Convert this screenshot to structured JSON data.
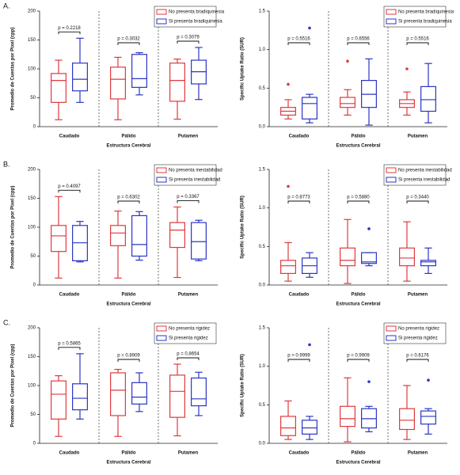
{
  "chart_data": [
    {
      "type": "box",
      "panel_label": "A.",
      "ylabel": "Promedio de Cuentas por Pixel (cpp)",
      "xlabel": "Estructura Cerebral",
      "categories": [
        "Caudado",
        "Pálido",
        "Putamen"
      ],
      "ylim": [
        0,
        200
      ],
      "yticks": [
        0,
        50,
        100,
        150,
        200
      ],
      "series": [
        {
          "name": "No presenta bradiquinesia",
          "color": "#e0393e",
          "min": [
            12,
            12,
            13
          ],
          "q1": [
            42,
            48,
            44
          ],
          "median": [
            80,
            82,
            80
          ],
          "q3": [
            92,
            103,
            110
          ],
          "max": [
            115,
            120,
            117
          ],
          "outliers": [
            [],
            [],
            []
          ]
        },
        {
          "name": "Si presenta bradiquinesia",
          "color": "#2b35c4",
          "min": [
            42,
            55,
            47
          ],
          "q1": [
            62,
            68,
            74
          ],
          "median": [
            82,
            83,
            95
          ],
          "q3": [
            110,
            125,
            115
          ],
          "max": [
            153,
            128,
            137
          ],
          "outliers": [
            [],
            [],
            []
          ]
        }
      ],
      "annotations": [
        "p = 0.2218",
        "p = 0.3032",
        "p = 0.3079"
      ]
    },
    {
      "type": "box",
      "ylabel": "Specific Uptake Ratio (SUR)",
      "xlabel": "Estructura Cerebral",
      "categories": [
        "Caudado",
        "Pálido",
        "Putamen"
      ],
      "ylim": [
        0,
        1.5
      ],
      "yticks": [
        {
          "value": 0,
          "label": "0.0"
        },
        0.5,
        {
          "value": 1,
          "label": "1.0"
        },
        1.5
      ],
      "series": [
        {
          "name": "No presenta bradiquinesia",
          "color": "#e0393e",
          "min": [
            0.1,
            0.15,
            0.15
          ],
          "q1": [
            0.15,
            0.25,
            0.25
          ],
          "median": [
            0.2,
            0.3,
            0.3
          ],
          "q3": [
            0.25,
            0.38,
            0.35
          ],
          "max": [
            0.35,
            0.48,
            0.45
          ],
          "outliers": [
            [
              0.55
            ],
            [
              0.85
            ],
            [
              0.75
            ]
          ]
        },
        {
          "name": "Si presenta bradiquinesia",
          "color": "#2b35c4",
          "min": [
            0.05,
            0.02,
            0.05
          ],
          "q1": [
            0.1,
            0.25,
            0.2
          ],
          "median": [
            0.3,
            0.42,
            0.35
          ],
          "q3": [
            0.38,
            0.6,
            0.52
          ],
          "max": [
            0.42,
            0.88,
            0.82
          ],
          "outliers": [
            [
              1.28
            ],
            [],
            []
          ]
        }
      ],
      "annotations": [
        "p = 0.5516",
        "p = 0.6556",
        "p = 0.5516"
      ]
    },
    {
      "type": "box",
      "panel_label": "B.",
      "ylabel": "Promedio de Cuentas por Pixel (cpp)",
      "xlabel": "Estructura Cerebral",
      "categories": [
        "Caudado",
        "Pálido",
        "Putamen"
      ],
      "ylim": [
        0,
        200
      ],
      "yticks": [
        0,
        50,
        100,
        150,
        200
      ],
      "series": [
        {
          "name": "No presenta inestabilidad",
          "color": "#e0393e",
          "min": [
            12,
            12,
            13
          ],
          "q1": [
            58,
            68,
            65
          ],
          "median": [
            85,
            90,
            95
          ],
          "q3": [
            103,
            103,
            108
          ],
          "max": [
            153,
            128,
            135
          ],
          "outliers": [
            [],
            [],
            []
          ]
        },
        {
          "name": "Si presenta inestabilidad",
          "color": "#2b35c4",
          "min": [
            40,
            43,
            42
          ],
          "q1": [
            42,
            50,
            45
          ],
          "median": [
            73,
            70,
            75
          ],
          "q3": [
            103,
            120,
            108
          ],
          "max": [
            110,
            127,
            112
          ],
          "outliers": [
            [],
            [],
            []
          ]
        }
      ],
      "annotations": [
        "p = 0.4097",
        "p = 0.6302",
        "p = 0.3367"
      ]
    },
    {
      "type": "box",
      "ylabel": "Specific Uptake Ratio (SUR)",
      "xlabel": "Estructura Cerebral",
      "categories": [
        "Caudado",
        "Pálido",
        "Putamen"
      ],
      "ylim": [
        0,
        1.5
      ],
      "yticks": [
        {
          "value": 0,
          "label": "0.0"
        },
        0.5,
        {
          "value": 1,
          "label": "1.0"
        },
        1.5
      ],
      "series": [
        {
          "name": "No presenta inestabilidad",
          "color": "#e0393e",
          "min": [
            0.05,
            0.02,
            0.05
          ],
          "q1": [
            0.15,
            0.25,
            0.25
          ],
          "median": [
            0.25,
            0.32,
            0.35
          ],
          "q3": [
            0.32,
            0.48,
            0.48
          ],
          "max": [
            0.55,
            0.85,
            0.82
          ],
          "outliers": [
            [
              1.28
            ],
            [],
            []
          ]
        },
        {
          "name": "Si presenta inestabilidad",
          "color": "#2b35c4",
          "min": [
            0.1,
            0.25,
            0.15
          ],
          "q1": [
            0.15,
            0.28,
            0.25
          ],
          "median": [
            0.25,
            0.3,
            0.3
          ],
          "q3": [
            0.35,
            0.42,
            0.32
          ],
          "max": [
            0.42,
            0.42,
            0.48
          ],
          "outliers": [
            [],
            [
              0.73
            ],
            []
          ]
        }
      ],
      "annotations": [
        "p = 0.8773",
        "p = 0.5880",
        "p = 0.3440"
      ]
    },
    {
      "type": "box",
      "panel_label": "C.",
      "ylabel": "Promedio de Cuentas por Pixel (cpp)",
      "xlabel": "Estructura Cerebral",
      "categories": [
        "Caudado",
        "Pálido",
        "Putamen"
      ],
      "ylim": [
        0,
        200
      ],
      "yticks": [
        0,
        50,
        100,
        150,
        200
      ],
      "series": [
        {
          "name": "No presenta rigidez",
          "color": "#e0393e",
          "min": [
            12,
            12,
            13
          ],
          "q1": [
            42,
            48,
            45
          ],
          "median": [
            85,
            92,
            90
          ],
          "q3": [
            108,
            122,
            118
          ],
          "max": [
            117,
            128,
            137
          ],
          "outliers": [
            [],
            [],
            []
          ]
        },
        {
          "name": "Si presenta rigidez",
          "color": "#2b35c4",
          "min": [
            42,
            55,
            48
          ],
          "q1": [
            58,
            68,
            65
          ],
          "median": [
            78,
            80,
            77
          ],
          "q3": [
            103,
            105,
            113
          ],
          "max": [
            155,
            122,
            123
          ],
          "outliers": [
            [],
            [],
            []
          ]
        }
      ],
      "annotations": [
        "p = 0.5865",
        "p = 0.8909",
        "p = 0.8654"
      ]
    },
    {
      "type": "box",
      "ylabel": "Specific Uptake Ratio (SUR)",
      "xlabel": "Estructura Cerebral",
      "categories": [
        "Caudado",
        "Pálido",
        "Putamen"
      ],
      "ylim": [
        0,
        1.5
      ],
      "yticks": [
        {
          "value": 0,
          "label": "0.0"
        },
        0.5,
        {
          "value": 1,
          "label": "1.0"
        },
        1.5
      ],
      "series": [
        {
          "name": "No presenta rigidez",
          "color": "#e0393e",
          "min": [
            0.05,
            0.02,
            0.05
          ],
          "q1": [
            0.1,
            0.22,
            0.18
          ],
          "median": [
            0.2,
            0.32,
            0.3
          ],
          "q3": [
            0.35,
            0.48,
            0.45
          ],
          "max": [
            0.55,
            0.85,
            0.75
          ],
          "outliers": [
            [],
            [],
            []
          ]
        },
        {
          "name": "Si presenta rigidez",
          "color": "#2b35c4",
          "min": [
            0.05,
            0.15,
            0.12
          ],
          "q1": [
            0.12,
            0.2,
            0.25
          ],
          "median": [
            0.2,
            0.32,
            0.35
          ],
          "q3": [
            0.3,
            0.45,
            0.42
          ],
          "max": [
            0.35,
            0.48,
            0.45
          ],
          "outliers": [
            [
              1.28
            ],
            [
              0.8
            ],
            [
              0.82
            ]
          ]
        }
      ],
      "annotations": [
        "p > 0.9999",
        "p = 0.9909",
        "p = 0.6176"
      ]
    }
  ]
}
